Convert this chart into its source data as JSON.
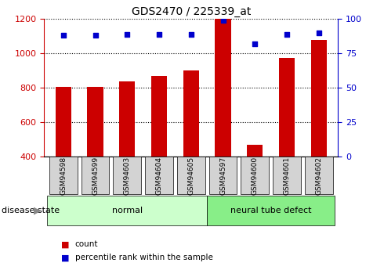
{
  "title": "GDS2470 / 225339_at",
  "samples": [
    "GSM94598",
    "GSM94599",
    "GSM94603",
    "GSM94604",
    "GSM94605",
    "GSM94597",
    "GSM94600",
    "GSM94601",
    "GSM94602"
  ],
  "counts": [
    805,
    805,
    838,
    868,
    902,
    1200,
    470,
    975,
    1080
  ],
  "percentiles": [
    88,
    88,
    89,
    89,
    89,
    99,
    82,
    89,
    90
  ],
  "ylim_left": [
    400,
    1200
  ],
  "ylim_right": [
    0,
    100
  ],
  "yticks_left": [
    400,
    600,
    800,
    1000,
    1200
  ],
  "yticks_right": [
    0,
    25,
    50,
    75,
    100
  ],
  "bar_color": "#cc0000",
  "dot_color": "#0000cc",
  "normal_color": "#ccffcc",
  "ntd_color": "#88ee88",
  "disease_state_label": "disease state",
  "legend_count_label": "count",
  "legend_percentile_label": "percentile rank within the sample",
  "tick_label_color_left": "#cc0000",
  "tick_label_color_right": "#0000cc",
  "x_label_box_color": "#d3d3d3",
  "bar_width": 0.5
}
